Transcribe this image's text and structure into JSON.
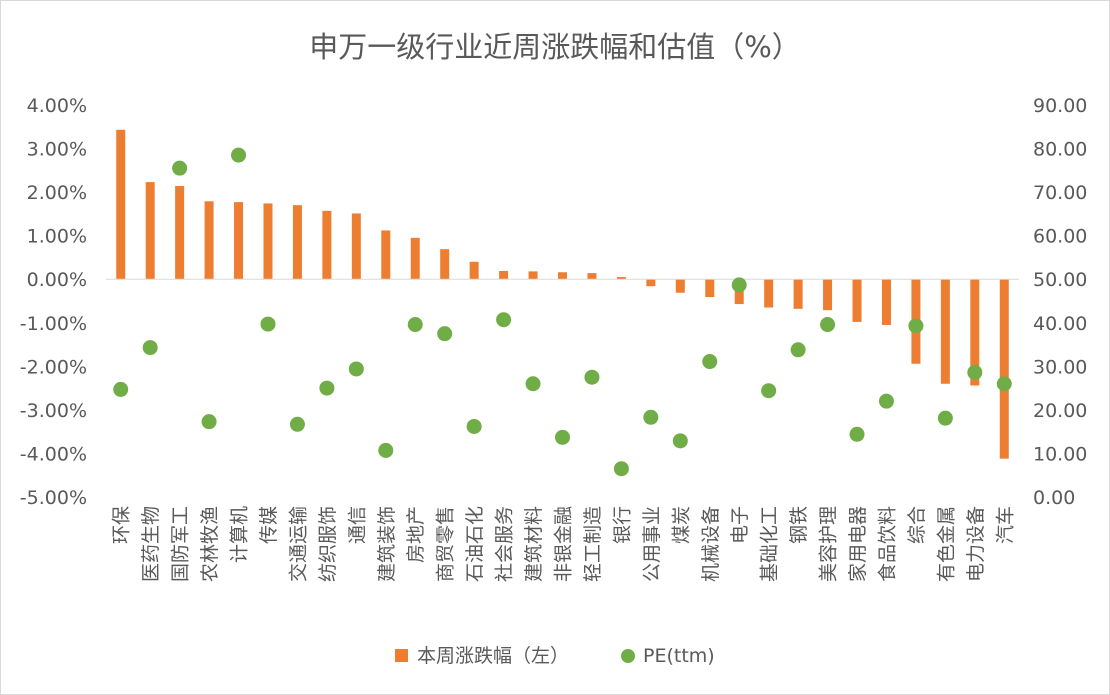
{
  "chart_data": {
    "type": "bar",
    "title": "申万一级行业近周涨跌幅和估值（%）",
    "categories": [
      "环保",
      "医药生物",
      "国防军工",
      "农林牧渔",
      "计算机",
      "传媒",
      "交通运输",
      "纺织服饰",
      "通信",
      "建筑装饰",
      "房地产",
      "商贸零售",
      "石油石化",
      "社会服务",
      "建筑材料",
      "非银金融",
      "轻工制造",
      "银行",
      "公用事业",
      "煤炭",
      "机械设备",
      "电子",
      "基础化工",
      "钢铁",
      "美容护理",
      "家用电器",
      "食品饮料",
      "综合",
      "有色金属",
      "电力设备",
      "汽车"
    ],
    "series": [
      {
        "name": "本周涨跌幅（左）",
        "type": "bar",
        "axis": "left",
        "color": "#ed7d31",
        "values": [
          3.43,
          2.23,
          2.14,
          1.79,
          1.77,
          1.74,
          1.7,
          1.57,
          1.51,
          1.12,
          0.95,
          0.69,
          0.4,
          0.19,
          0.18,
          0.16,
          0.14,
          0.05,
          -0.16,
          -0.31,
          -0.41,
          -0.57,
          -0.65,
          -0.68,
          -0.71,
          -0.98,
          -1.05,
          -1.94,
          -2.4,
          -2.44,
          -4.12
        ]
      },
      {
        "name": "PE(ttm)",
        "type": "scatter",
        "axis": "right",
        "color": "#70ad47",
        "values": [
          24.7,
          34.3,
          75.5,
          17.3,
          78.5,
          39.7,
          16.7,
          25.0,
          29.4,
          10.7,
          39.6,
          37.5,
          16.2,
          40.7,
          26.0,
          13.7,
          27.5,
          6.5,
          18.3,
          12.9,
          31.1,
          48.7,
          24.4,
          33.8,
          39.6,
          14.4,
          22.0,
          39.3,
          18.1,
          28.6,
          26.0
        ]
      }
    ],
    "yaxis_left": {
      "min": -5,
      "max": 4,
      "step": 1,
      "format": "percent2",
      "ticks": [
        "4.00%",
        "3.00%",
        "2.00%",
        "1.00%",
        "0.00%",
        "-1.00%",
        "-2.00%",
        "-3.00%",
        "-4.00%",
        "-5.00%"
      ]
    },
    "yaxis_right": {
      "min": 0,
      "max": 90,
      "step": 10,
      "format": "fixed2",
      "ticks": [
        "90.00",
        "80.00",
        "70.00",
        "60.00",
        "50.00",
        "40.00",
        "30.00",
        "20.00",
        "10.00",
        "0.00"
      ]
    },
    "grid": false,
    "legend_position": "bottom"
  }
}
